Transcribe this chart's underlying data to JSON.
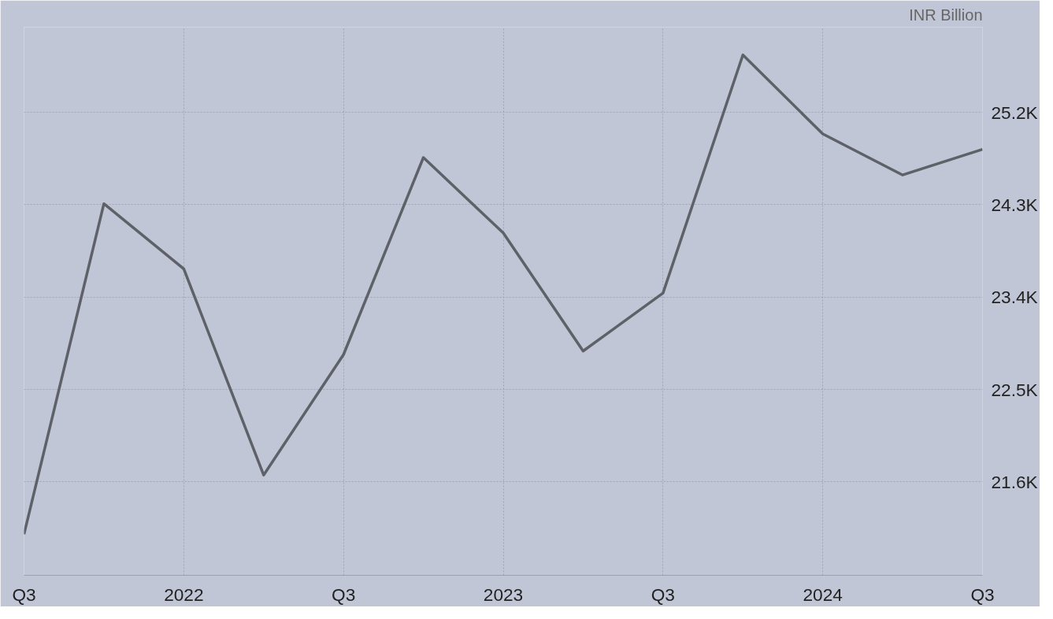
{
  "chart_data": {
    "type": "line",
    "ylabel": "INR Billion",
    "categories": [
      "Q3",
      null,
      "2022",
      null,
      "Q3",
      null,
      "2023",
      null,
      "Q3",
      null,
      "2024",
      null,
      "Q3"
    ],
    "series": [
      {
        "color": "#5f6168",
        "values": [
          21090,
          24310,
          23675,
          21667,
          22840,
          24760,
          24025,
          22875,
          23440,
          25760,
          24990,
          24590,
          24840
        ]
      }
    ],
    "ylim": [
      20690,
      26030
    ],
    "yticks": [
      {
        "value": 21600,
        "label": "21.6K"
      },
      {
        "value": 22500,
        "label": "22.5K"
      },
      {
        "value": 23400,
        "label": "23.4K"
      },
      {
        "value": 24300,
        "label": "24.3K"
      },
      {
        "value": 25200,
        "label": "25.2K"
      }
    ],
    "grid": true,
    "marker": "none",
    "line_style": "solid"
  }
}
